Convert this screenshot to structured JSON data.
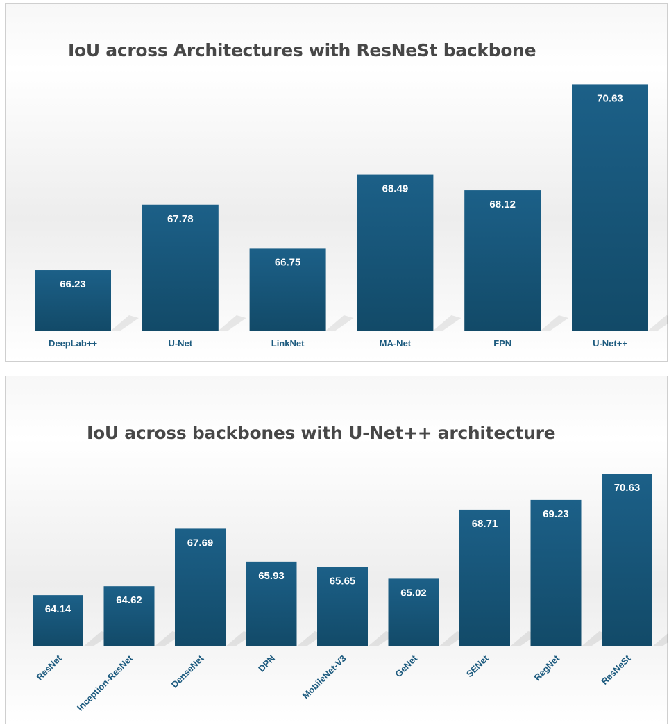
{
  "colors": {
    "bar_top": "#1c6088",
    "bar_bottom": "#124a68",
    "tick_text": "#1c5a7e",
    "title_text": "#474747"
  },
  "chart_data": [
    {
      "type": "bar",
      "title": "IoU across Architectures with ResNeSt backbone",
      "xlabel": "",
      "ylabel": "",
      "grid": false,
      "legend": "none",
      "categories": [
        "DeepLab++",
        "U-Net",
        "LinkNet",
        "MA-Net",
        "FPN",
        "U-Net++"
      ],
      "values": [
        66.23,
        67.78,
        66.75,
        68.49,
        68.12,
        70.63
      ],
      "value_labels": [
        "66.23",
        "67.78",
        "66.75",
        "68.49",
        "68.12",
        "70.63"
      ],
      "ylim": [
        64.8,
        70.9
      ],
      "tick_rotation": 0
    },
    {
      "type": "bar",
      "title": "IoU across backbones with U-Net++ architecture",
      "xlabel": "",
      "ylabel": "",
      "grid": false,
      "legend": "none",
      "categories": [
        "ResNet",
        "Inception-ResNet",
        "DenseNet",
        "DPN",
        "MobileNet-V3",
        "GeNet",
        "SENet",
        "RegNet",
        "ResNeSt"
      ],
      "values": [
        64.14,
        64.62,
        67.69,
        65.93,
        65.65,
        65.02,
        68.71,
        69.23,
        70.63
      ],
      "value_labels": [
        "64.14",
        "64.62",
        "67.69",
        "65.93",
        "65.65",
        "65.02",
        "68.71",
        "69.23",
        "70.63"
      ],
      "ylim": [
        61.4,
        71.6
      ],
      "tick_rotation": -45
    }
  ]
}
